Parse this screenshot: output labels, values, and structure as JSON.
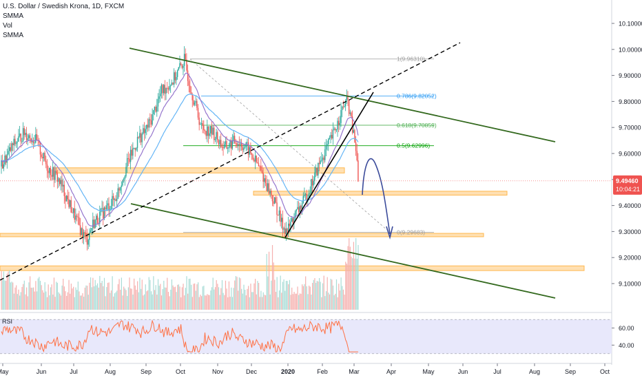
{
  "header": {
    "title": "U.S. Dollar / Swedish Krona, 1D, FXCM",
    "indicators": [
      "SMMA",
      "Vol",
      "SMMA"
    ]
  },
  "rsi_label": "RSI",
  "price_badge": {
    "value": "9.49460",
    "countdown": "10:04:21",
    "color": "#ef5350"
  },
  "colors": {
    "up": "#26a69a",
    "down": "#ef5350",
    "channel": "#33691e",
    "support": "#ffb74d",
    "smma_slow": "#64b5f6",
    "smma_fast": "#9575cd",
    "rsi_line": "#ff7043",
    "rsi_band": "#e8e8fb",
    "arrow": "#3a4a9a"
  },
  "fib_labels": [
    {
      "text": "1(9.96310)",
      "price": 9.9631,
      "color": "#9e9e9e"
    },
    {
      "text": "0.786(9.82052)",
      "price": 9.82052,
      "color": "#2196f3"
    },
    {
      "text": "0.618(9.70859)",
      "price": 9.70859,
      "color": "#4caf50"
    },
    {
      "text": "0.5(9.62996)",
      "price": 9.62996,
      "color": "#00a000"
    },
    {
      "text": "0(9.29683)",
      "price": 9.29683,
      "color": "#9e9e9e"
    }
  ],
  "chart_data": {
    "type": "candlestick",
    "symbol": "U.S. Dollar / Swedish Krona",
    "interval": "1D",
    "source": "FXCM",
    "ylim": [
      9.05,
      10.18
    ],
    "y_ticks": [
      "10.10000",
      "10.00000",
      "9.90000",
      "9.80000",
      "9.70000",
      "9.60000",
      "9.50000",
      "9.40000",
      "9.30000",
      "9.20000",
      "9.10000"
    ],
    "y_tick_values": [
      10.1,
      10.0,
      9.9,
      9.8,
      9.7,
      9.6,
      9.5,
      9.4,
      9.3,
      9.2,
      9.1
    ],
    "x_ticks": [
      "May",
      "Jun",
      "Jul",
      "Aug",
      "Sep",
      "Oct",
      "Nov",
      "Dec",
      "2020",
      "Feb",
      "Mar",
      "Apr",
      "May",
      "Jun",
      "Jul",
      "Aug",
      "Sep",
      "Oct"
    ],
    "price_path": [
      [
        0,
        9.55
      ],
      [
        10,
        9.63
      ],
      [
        20,
        9.68
      ],
      [
        30,
        9.65
      ],
      [
        40,
        9.55
      ],
      [
        50,
        9.5
      ],
      [
        60,
        9.4
      ],
      [
        70,
        9.3
      ],
      [
        75,
        9.27
      ],
      [
        80,
        9.33
      ],
      [
        90,
        9.38
      ],
      [
        100,
        9.43
      ],
      [
        110,
        9.56
      ],
      [
        120,
        9.66
      ],
      [
        125,
        9.68
      ],
      [
        130,
        9.72
      ],
      [
        140,
        9.84
      ],
      [
        150,
        9.88
      ],
      [
        155,
        9.92
      ],
      [
        160,
        9.96
      ],
      [
        165,
        9.86
      ],
      [
        175,
        9.7
      ],
      [
        185,
        9.68
      ],
      [
        195,
        9.62
      ],
      [
        205,
        9.65
      ],
      [
        215,
        9.62
      ],
      [
        225,
        9.55
      ],
      [
        235,
        9.45
      ],
      [
        240,
        9.4
      ],
      [
        245,
        9.33
      ],
      [
        250,
        9.3
      ],
      [
        255,
        9.35
      ],
      [
        265,
        9.42
      ],
      [
        270,
        9.47
      ],
      [
        280,
        9.58
      ],
      [
        290,
        9.67
      ],
      [
        300,
        9.79
      ],
      [
        303,
        9.8
      ],
      [
        306,
        9.72
      ],
      [
        310,
        9.62
      ],
      [
        312,
        9.4946
      ]
    ],
    "volume_range": [
      0,
      1
    ]
  }
}
